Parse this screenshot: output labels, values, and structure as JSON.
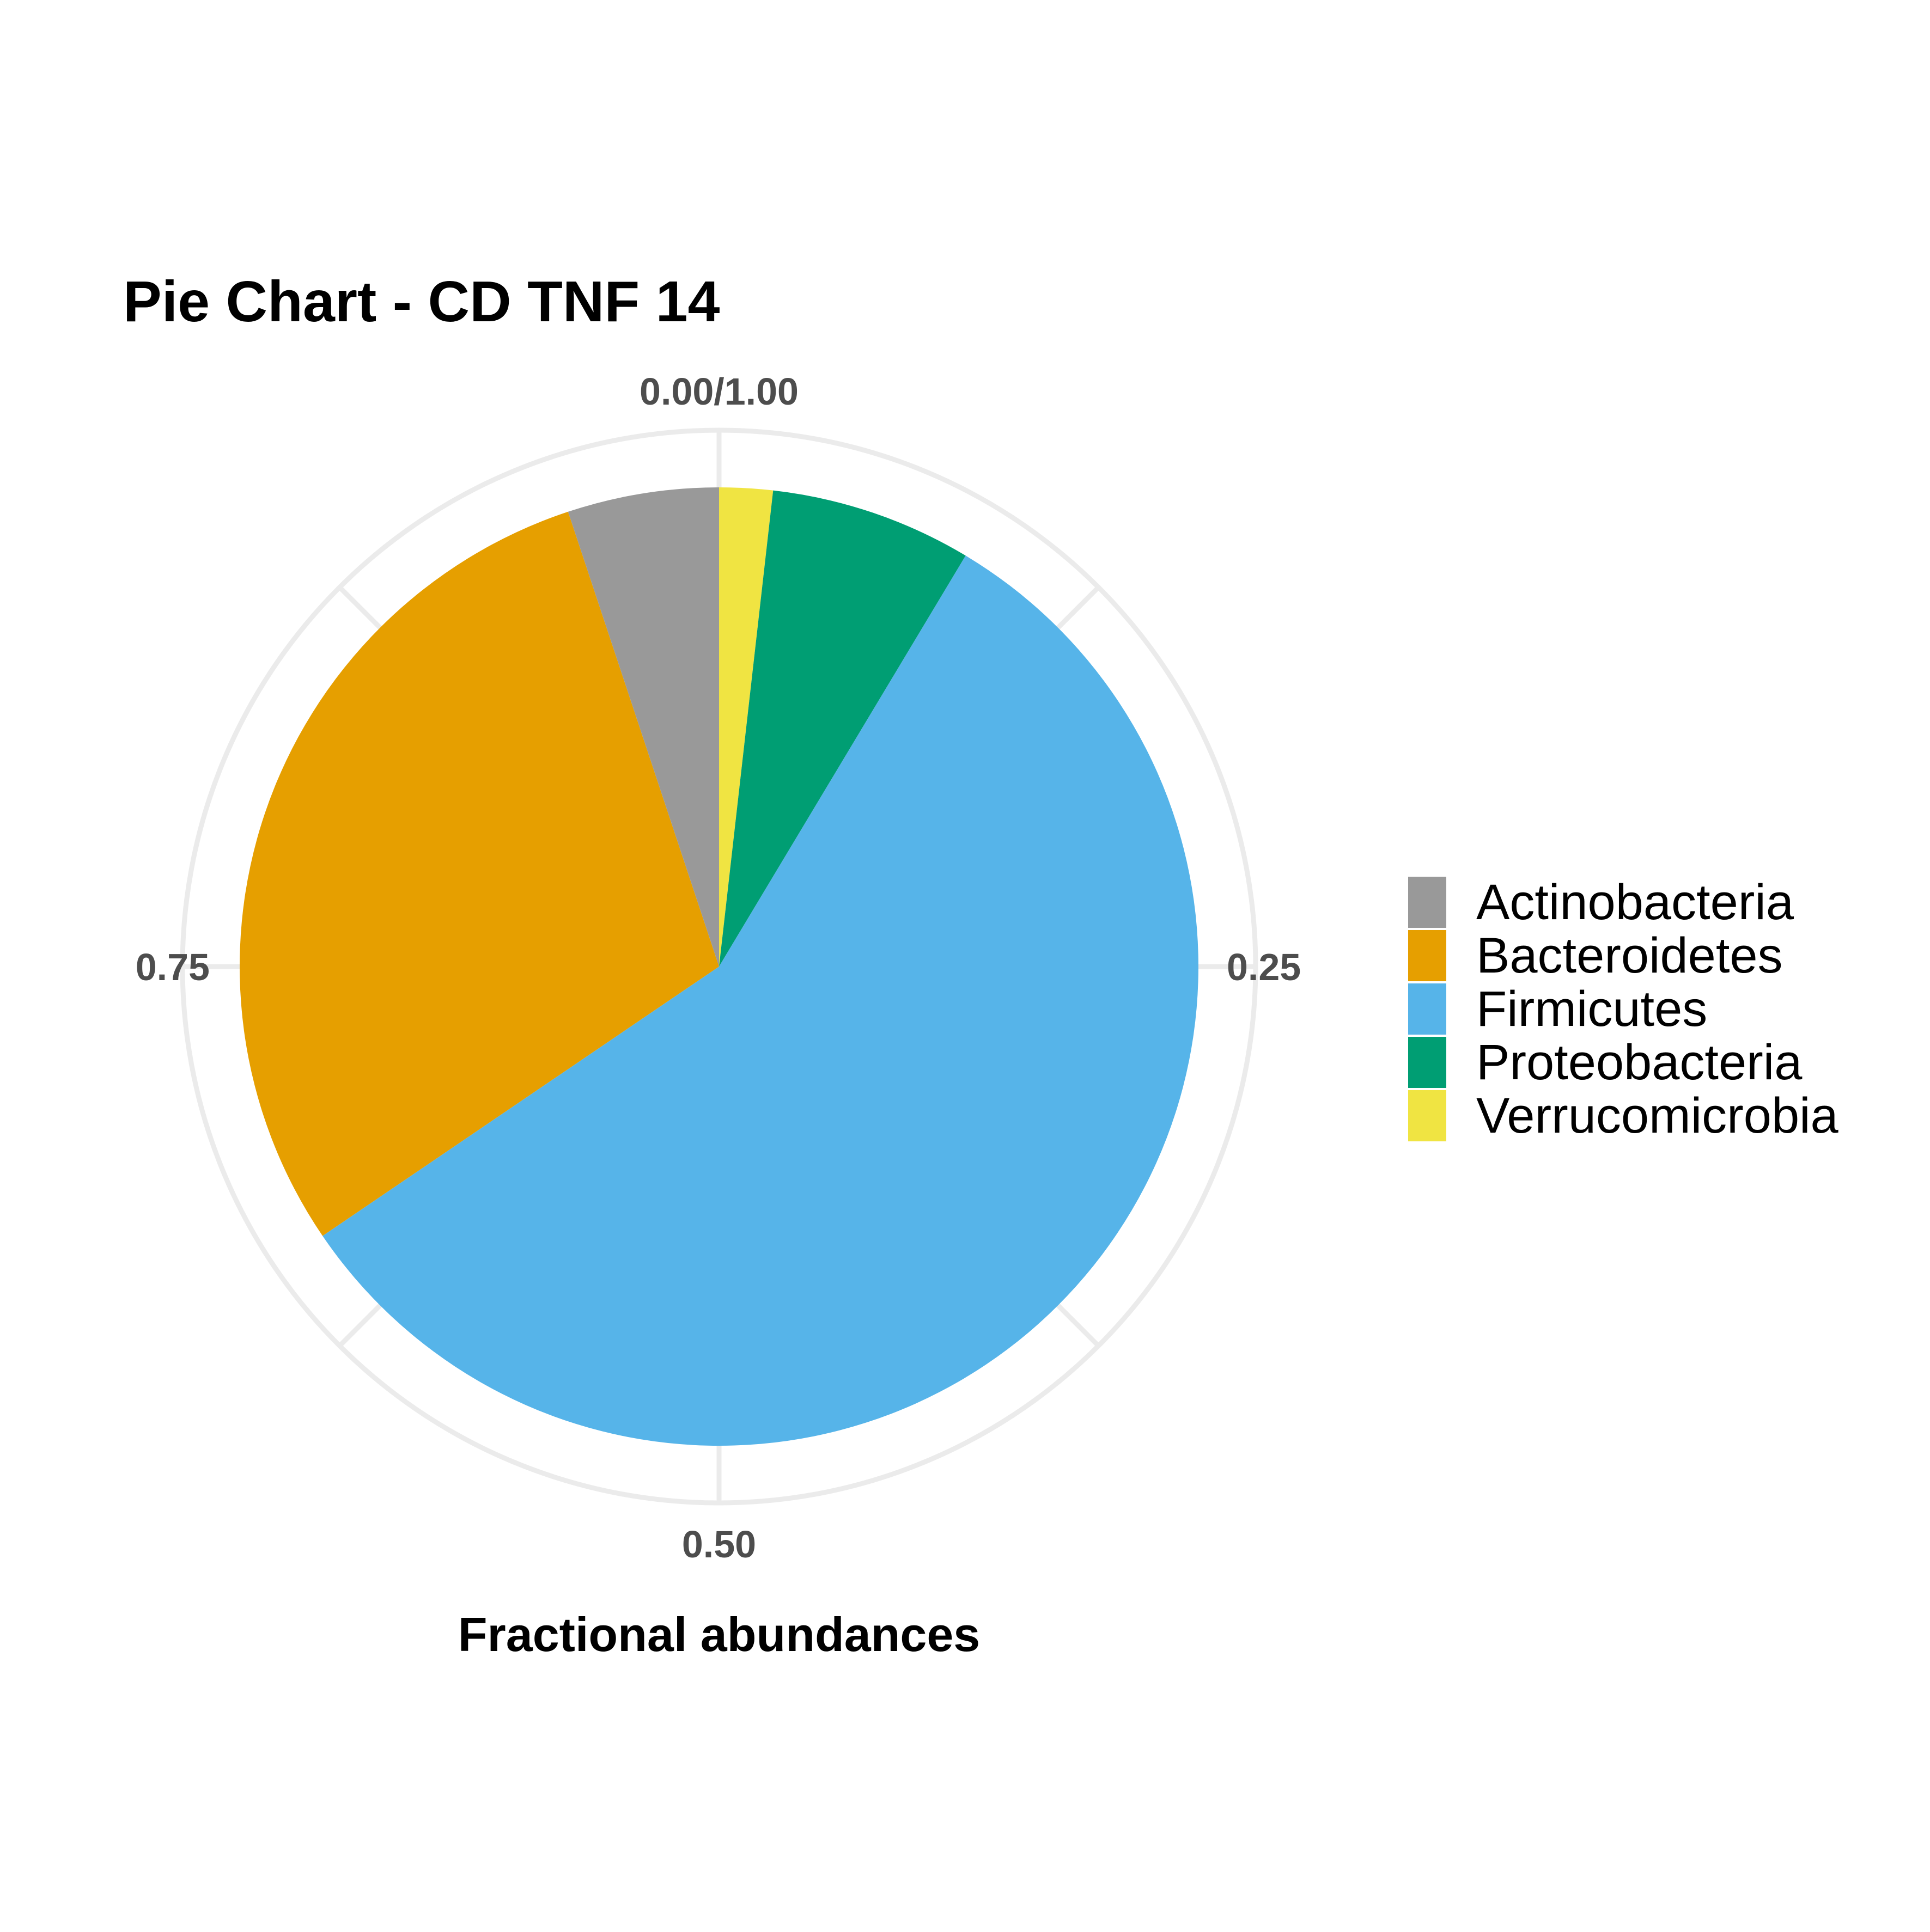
{
  "chart_data": {
    "type": "pie",
    "title": "Pie Chart - CD TNF 14",
    "xlabel": "Fractional abundances",
    "ylabel": "",
    "theta_ticks": [
      {
        "value": 0.0,
        "label": "0.00/1.00"
      },
      {
        "value": 0.25,
        "label": "0.25"
      },
      {
        "value": 0.5,
        "label": "0.50"
      },
      {
        "value": 0.75,
        "label": "0.75"
      }
    ],
    "grid": true,
    "legend_position": "right",
    "slices": [
      {
        "label": "Verrucomicrobia",
        "value": 0.018,
        "color": "#F0E442"
      },
      {
        "label": "Proteobacteria",
        "value": 0.068,
        "color": "#009E73"
      },
      {
        "label": "Firmicutes",
        "value": 0.569,
        "color": "#56B4E9"
      },
      {
        "label": "Bacteroidetes",
        "value": 0.294,
        "color": "#E69F00"
      },
      {
        "label": "Actinobacteria",
        "value": 0.051,
        "color": "#999999"
      }
    ],
    "legend": [
      {
        "label": "Actinobacteria",
        "color": "#999999"
      },
      {
        "label": "Bacteroidetes",
        "color": "#E69F00"
      },
      {
        "label": "Firmicutes",
        "color": "#56B4E9"
      },
      {
        "label": "Proteobacteria",
        "color": "#009E73"
      },
      {
        "label": "Verrucomicrobia",
        "color": "#F0E442"
      }
    ],
    "grid_color": "#ebebeb"
  }
}
